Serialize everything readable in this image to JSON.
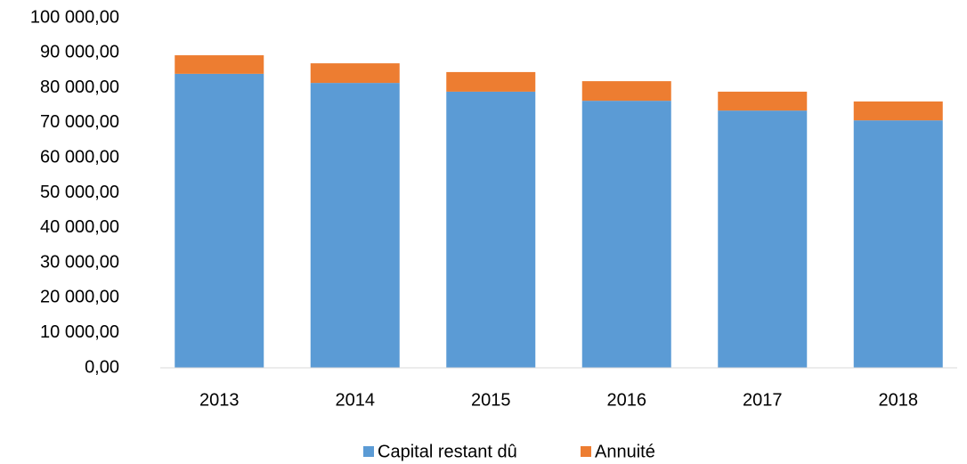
{
  "chart_data": {
    "type": "stacked-bar",
    "categories": [
      "2013",
      "2014",
      "2015",
      "2016",
      "2017",
      "2018"
    ],
    "series": [
      {
        "name": "Capital restant dû",
        "color": "#5b9bd5",
        "values": [
          84000,
          81400,
          78900,
          76300,
          73500,
          70700
        ]
      },
      {
        "name": "Annuité",
        "color": "#ed7d31",
        "values": [
          5300,
          5600,
          5600,
          5600,
          5400,
          5400
        ]
      }
    ],
    "ylim": [
      0,
      100000
    ],
    "yticks": [
      {
        "value": 0,
        "label": "0,00"
      },
      {
        "value": 10000,
        "label": "10 000,00"
      },
      {
        "value": 20000,
        "label": "20 000,00"
      },
      {
        "value": 30000,
        "label": "30 000,00"
      },
      {
        "value": 40000,
        "label": "40 000,00"
      },
      {
        "value": 50000,
        "label": "50 000,00"
      },
      {
        "value": 60000,
        "label": "60 000,00"
      },
      {
        "value": 70000,
        "label": "70 000,00"
      },
      {
        "value": 80000,
        "label": "80 000,00"
      },
      {
        "value": 90000,
        "label": "90 000,00"
      },
      {
        "value": 100000,
        "label": "100 000,00"
      }
    ],
    "grid": false,
    "legend": "bottom"
  }
}
